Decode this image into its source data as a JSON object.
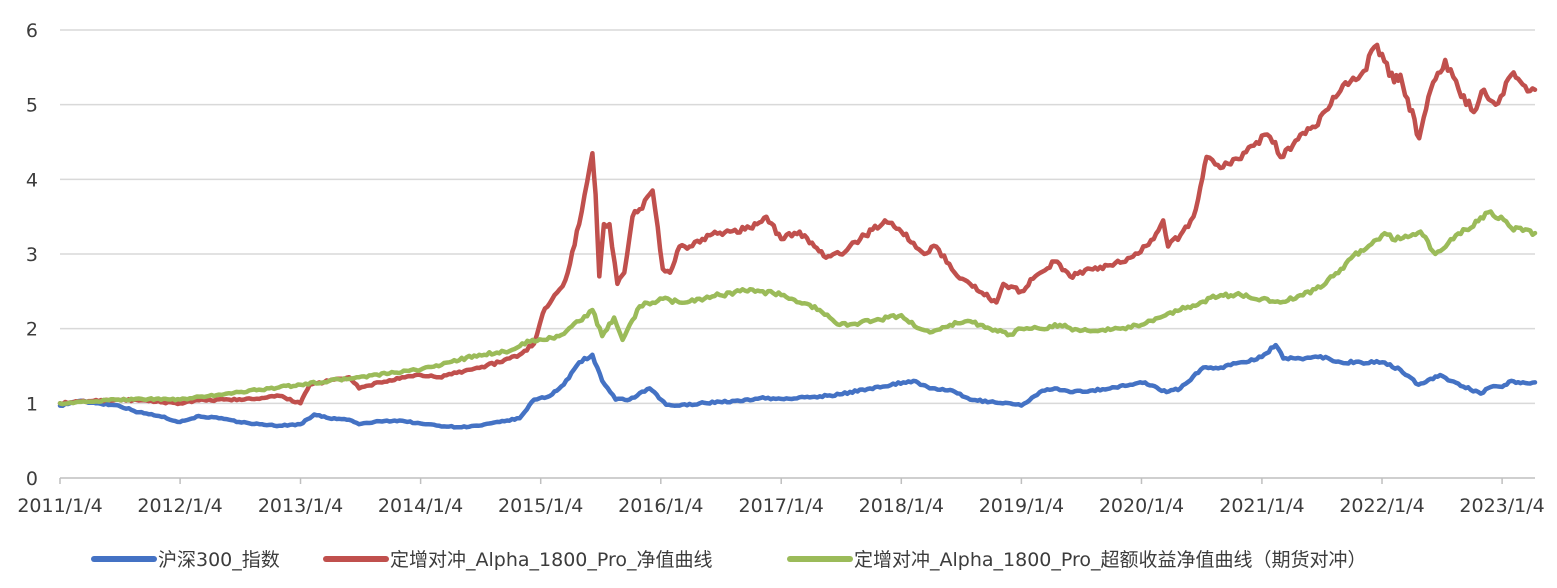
{
  "chart_data": {
    "type": "line",
    "title": "",
    "xlabel": "",
    "ylabel": "",
    "ylim": [
      0,
      6
    ],
    "yticks": [
      0,
      1,
      2,
      3,
      4,
      5,
      6
    ],
    "xlim": [
      "2011-01-04",
      "2023-04-14"
    ],
    "x_tick_labels": [
      "2011/1/4",
      "2012/1/4",
      "2013/1/4",
      "2014/1/4",
      "2015/1/4",
      "2016/1/4",
      "2017/1/4",
      "2018/1/4",
      "2019/1/4",
      "2020/1/4",
      "2021/1/4",
      "2022/1/4",
      "2023/1/4"
    ],
    "x_tick_dates": [
      "2011-01-04",
      "2012-01-04",
      "2013-01-04",
      "2014-01-04",
      "2015-01-04",
      "2016-01-04",
      "2017-01-04",
      "2018-01-04",
      "2019-01-04",
      "2020-01-04",
      "2021-01-04",
      "2022-01-04",
      "2023-01-04"
    ],
    "grid": "horizontal",
    "legend_position": "bottom",
    "series": [
      {
        "name": "沪深300_指数",
        "color": "#4472c4",
        "points": [
          [
            "2011-01-04",
            0.97
          ],
          [
            "2011-03-01",
            1.03
          ],
          [
            "2011-05-01",
            1.0
          ],
          [
            "2011-07-01",
            0.97
          ],
          [
            "2011-09-01",
            0.88
          ],
          [
            "2011-11-01",
            0.83
          ],
          [
            "2012-01-04",
            0.75
          ],
          [
            "2012-03-01",
            0.83
          ],
          [
            "2012-05-01",
            0.8
          ],
          [
            "2012-07-01",
            0.75
          ],
          [
            "2012-09-01",
            0.72
          ],
          [
            "2012-11-01",
            0.7
          ],
          [
            "2013-01-04",
            0.72
          ],
          [
            "2013-02-15",
            0.85
          ],
          [
            "2013-04-01",
            0.8
          ],
          [
            "2013-06-01",
            0.78
          ],
          [
            "2013-07-01",
            0.72
          ],
          [
            "2013-09-01",
            0.76
          ],
          [
            "2013-11-01",
            0.77
          ],
          [
            "2014-01-04",
            0.73
          ],
          [
            "2014-03-01",
            0.7
          ],
          [
            "2014-05-01",
            0.68
          ],
          [
            "2014-07-01",
            0.7
          ],
          [
            "2014-09-01",
            0.75
          ],
          [
            "2014-11-01",
            0.8
          ],
          [
            "2014-12-15",
            1.05
          ],
          [
            "2015-02-01",
            1.1
          ],
          [
            "2015-03-15",
            1.25
          ],
          [
            "2015-05-01",
            1.55
          ],
          [
            "2015-06-10",
            1.65
          ],
          [
            "2015-07-10",
            1.3
          ],
          [
            "2015-08-20",
            1.05
          ],
          [
            "2015-10-01",
            1.05
          ],
          [
            "2015-12-01",
            1.2
          ],
          [
            "2016-01-20",
            0.98
          ],
          [
            "2016-03-01",
            0.97
          ],
          [
            "2016-05-01",
            1.0
          ],
          [
            "2016-07-01",
            1.02
          ],
          [
            "2016-09-01",
            1.03
          ],
          [
            "2016-11-01",
            1.07
          ],
          [
            "2017-01-04",
            1.06
          ],
          [
            "2017-04-01",
            1.08
          ],
          [
            "2017-07-01",
            1.12
          ],
          [
            "2017-10-01",
            1.2
          ],
          [
            "2018-01-10",
            1.28
          ],
          [
            "2018-02-10",
            1.3
          ],
          [
            "2018-04-01",
            1.2
          ],
          [
            "2018-06-01",
            1.18
          ],
          [
            "2018-08-01",
            1.05
          ],
          [
            "2018-10-01",
            1.02
          ],
          [
            "2018-12-01",
            1.0
          ],
          [
            "2019-01-04",
            0.97
          ],
          [
            "2019-03-01",
            1.15
          ],
          [
            "2019-04-15",
            1.2
          ],
          [
            "2019-06-01",
            1.15
          ],
          [
            "2019-08-01",
            1.17
          ],
          [
            "2019-10-01",
            1.2
          ],
          [
            "2019-12-01",
            1.25
          ],
          [
            "2020-01-15",
            1.28
          ],
          [
            "2020-03-20",
            1.15
          ],
          [
            "2020-05-01",
            1.2
          ],
          [
            "2020-07-10",
            1.48
          ],
          [
            "2020-09-01",
            1.48
          ],
          [
            "2020-11-01",
            1.55
          ],
          [
            "2021-01-04",
            1.62
          ],
          [
            "2021-02-15",
            1.78
          ],
          [
            "2021-03-10",
            1.6
          ],
          [
            "2021-05-01",
            1.6
          ],
          [
            "2021-07-01",
            1.63
          ],
          [
            "2021-09-01",
            1.55
          ],
          [
            "2021-11-01",
            1.55
          ],
          [
            "2022-01-04",
            1.55
          ],
          [
            "2022-03-01",
            1.45
          ],
          [
            "2022-04-25",
            1.25
          ],
          [
            "2022-06-30",
            1.38
          ],
          [
            "2022-08-01",
            1.3
          ],
          [
            "2022-10-31",
            1.13
          ],
          [
            "2022-12-01",
            1.22
          ],
          [
            "2023-01-04",
            1.22
          ],
          [
            "2023-02-01",
            1.3
          ],
          [
            "2023-03-01",
            1.27
          ],
          [
            "2023-04-14",
            1.28
          ]
        ]
      },
      {
        "name": "定增对冲_Alpha_1800_Pro_净值曲线",
        "color": "#c0504d",
        "points": [
          [
            "2011-01-04",
            1.0
          ],
          [
            "2011-04-01",
            1.03
          ],
          [
            "2011-07-01",
            1.05
          ],
          [
            "2011-10-01",
            1.03
          ],
          [
            "2012-01-04",
            1.0
          ],
          [
            "2012-03-01",
            1.04
          ],
          [
            "2012-06-01",
            1.05
          ],
          [
            "2012-09-01",
            1.06
          ],
          [
            "2012-11-01",
            1.1
          ],
          [
            "2013-01-04",
            1.0
          ],
          [
            "2013-02-01",
            1.25
          ],
          [
            "2013-04-01",
            1.3
          ],
          [
            "2013-06-01",
            1.35
          ],
          [
            "2013-07-01",
            1.2
          ],
          [
            "2013-09-01",
            1.28
          ],
          [
            "2013-11-01",
            1.33
          ],
          [
            "2014-01-04",
            1.38
          ],
          [
            "2014-03-01",
            1.35
          ],
          [
            "2014-06-01",
            1.45
          ],
          [
            "2014-09-01",
            1.55
          ],
          [
            "2014-11-01",
            1.65
          ],
          [
            "2014-12-15",
            1.8
          ],
          [
            "2015-01-10",
            2.2
          ],
          [
            "2015-02-15",
            2.45
          ],
          [
            "2015-03-20",
            2.65
          ],
          [
            "2015-05-01",
            3.4
          ],
          [
            "2015-06-10",
            4.35
          ],
          [
            "2015-06-20",
            3.8
          ],
          [
            "2015-07-01",
            2.7
          ],
          [
            "2015-07-15",
            3.4
          ],
          [
            "2015-08-01",
            3.4
          ],
          [
            "2015-08-25",
            2.6
          ],
          [
            "2015-09-15",
            2.75
          ],
          [
            "2015-10-10",
            3.5
          ],
          [
            "2015-11-01",
            3.6
          ],
          [
            "2015-12-10",
            3.85
          ],
          [
            "2016-01-10",
            2.8
          ],
          [
            "2016-02-01",
            2.75
          ],
          [
            "2016-03-01",
            3.1
          ],
          [
            "2016-04-01",
            3.1
          ],
          [
            "2016-06-01",
            3.25
          ],
          [
            "2016-08-01",
            3.3
          ],
          [
            "2016-10-01",
            3.35
          ],
          [
            "2016-11-20",
            3.5
          ],
          [
            "2017-01-04",
            3.2
          ],
          [
            "2017-03-01",
            3.3
          ],
          [
            "2017-04-15",
            3.1
          ],
          [
            "2017-05-20",
            2.95
          ],
          [
            "2017-07-01",
            3.0
          ],
          [
            "2017-09-01",
            3.2
          ],
          [
            "2017-11-15",
            3.45
          ],
          [
            "2018-01-04",
            3.3
          ],
          [
            "2018-02-10",
            3.15
          ],
          [
            "2018-03-15",
            3.0
          ],
          [
            "2018-04-20",
            3.1
          ],
          [
            "2018-06-15",
            2.75
          ],
          [
            "2018-08-01",
            2.6
          ],
          [
            "2018-10-20",
            2.35
          ],
          [
            "2018-11-10",
            2.6
          ],
          [
            "2019-01-04",
            2.5
          ],
          [
            "2019-02-15",
            2.7
          ],
          [
            "2019-04-15",
            2.9
          ],
          [
            "2019-06-01",
            2.7
          ],
          [
            "2019-08-01",
            2.8
          ],
          [
            "2019-10-01",
            2.85
          ],
          [
            "2019-12-01",
            2.95
          ],
          [
            "2020-02-10",
            3.2
          ],
          [
            "2020-03-10",
            3.45
          ],
          [
            "2020-03-25",
            3.1
          ],
          [
            "2020-05-01",
            3.25
          ],
          [
            "2020-06-10",
            3.5
          ],
          [
            "2020-07-01",
            3.9
          ],
          [
            "2020-07-20",
            4.3
          ],
          [
            "2020-08-15",
            4.2
          ],
          [
            "2020-10-01",
            4.2
          ],
          [
            "2020-12-10",
            4.45
          ],
          [
            "2021-01-20",
            4.6
          ],
          [
            "2021-03-10",
            4.3
          ],
          [
            "2021-05-01",
            4.6
          ],
          [
            "2021-06-15",
            4.7
          ],
          [
            "2021-08-01",
            5.0
          ],
          [
            "2021-09-15",
            5.3
          ],
          [
            "2021-11-01",
            5.4
          ],
          [
            "2021-12-20",
            5.8
          ],
          [
            "2022-02-10",
            5.3
          ],
          [
            "2022-03-01",
            5.4
          ],
          [
            "2022-04-27",
            4.55
          ],
          [
            "2022-06-01",
            5.2
          ],
          [
            "2022-07-15",
            5.6
          ],
          [
            "2022-08-25",
            5.2
          ],
          [
            "2022-10-10",
            4.9
          ],
          [
            "2022-11-10",
            5.2
          ],
          [
            "2022-12-15",
            5.0
          ],
          [
            "2023-02-01",
            5.4
          ],
          [
            "2023-03-15",
            5.25
          ],
          [
            "2023-04-14",
            5.2
          ]
        ]
      },
      {
        "name": "定增对冲_Alpha_1800_Pro_超额收益净值曲线（期货对冲）",
        "color": "#9bbb59",
        "points": [
          [
            "2011-01-04",
            1.0
          ],
          [
            "2011-04-01",
            1.02
          ],
          [
            "2011-07-01",
            1.05
          ],
          [
            "2011-10-01",
            1.06
          ],
          [
            "2012-01-04",
            1.05
          ],
          [
            "2012-04-01",
            1.1
          ],
          [
            "2012-07-01",
            1.15
          ],
          [
            "2012-10-01",
            1.2
          ],
          [
            "2013-01-04",
            1.25
          ],
          [
            "2013-04-01",
            1.3
          ],
          [
            "2013-07-01",
            1.35
          ],
          [
            "2013-10-01",
            1.4
          ],
          [
            "2014-01-04",
            1.45
          ],
          [
            "2014-04-01",
            1.55
          ],
          [
            "2014-07-01",
            1.65
          ],
          [
            "2014-10-01",
            1.7
          ],
          [
            "2014-12-10",
            1.85
          ],
          [
            "2015-01-15",
            1.85
          ],
          [
            "2015-03-01",
            1.9
          ],
          [
            "2015-05-01",
            2.1
          ],
          [
            "2015-06-10",
            2.25
          ],
          [
            "2015-07-10",
            1.9
          ],
          [
            "2015-08-15",
            2.15
          ],
          [
            "2015-09-10",
            1.85
          ],
          [
            "2015-11-01",
            2.3
          ],
          [
            "2016-01-10",
            2.4
          ],
          [
            "2016-03-01",
            2.35
          ],
          [
            "2016-05-01",
            2.4
          ],
          [
            "2016-07-01",
            2.45
          ],
          [
            "2016-09-01",
            2.5
          ],
          [
            "2016-11-01",
            2.5
          ],
          [
            "2017-01-04",
            2.45
          ],
          [
            "2017-03-01",
            2.35
          ],
          [
            "2017-05-01",
            2.25
          ],
          [
            "2017-07-01",
            2.05
          ],
          [
            "2017-09-01",
            2.08
          ],
          [
            "2017-11-01",
            2.12
          ],
          [
            "2018-01-04",
            2.18
          ],
          [
            "2018-03-01",
            2.0
          ],
          [
            "2018-04-01",
            1.95
          ],
          [
            "2018-06-01",
            2.05
          ],
          [
            "2018-08-01",
            2.1
          ],
          [
            "2018-10-01",
            2.0
          ],
          [
            "2018-12-01",
            1.92
          ],
          [
            "2019-01-04",
            2.0
          ],
          [
            "2019-03-01",
            2.0
          ],
          [
            "2019-05-01",
            2.05
          ],
          [
            "2019-07-01",
            1.97
          ],
          [
            "2019-09-01",
            1.98
          ],
          [
            "2019-11-01",
            2.0
          ],
          [
            "2020-01-04",
            2.05
          ],
          [
            "2020-03-01",
            2.15
          ],
          [
            "2020-05-01",
            2.25
          ],
          [
            "2020-07-01",
            2.35
          ],
          [
            "2020-09-01",
            2.45
          ],
          [
            "2020-11-01",
            2.45
          ],
          [
            "2021-01-04",
            2.4
          ],
          [
            "2021-03-01",
            2.35
          ],
          [
            "2021-05-01",
            2.45
          ],
          [
            "2021-07-01",
            2.55
          ],
          [
            "2021-09-01",
            2.8
          ],
          [
            "2021-11-01",
            3.05
          ],
          [
            "2022-01-04",
            3.25
          ],
          [
            "2022-03-01",
            3.2
          ],
          [
            "2022-05-01",
            3.3
          ],
          [
            "2022-06-15",
            3.0
          ],
          [
            "2022-08-01",
            3.2
          ],
          [
            "2022-10-01",
            3.35
          ],
          [
            "2022-11-15",
            3.55
          ],
          [
            "2023-01-01",
            3.5
          ],
          [
            "2023-02-01",
            3.35
          ],
          [
            "2023-03-01",
            3.35
          ],
          [
            "2023-04-14",
            3.28
          ]
        ]
      }
    ]
  }
}
